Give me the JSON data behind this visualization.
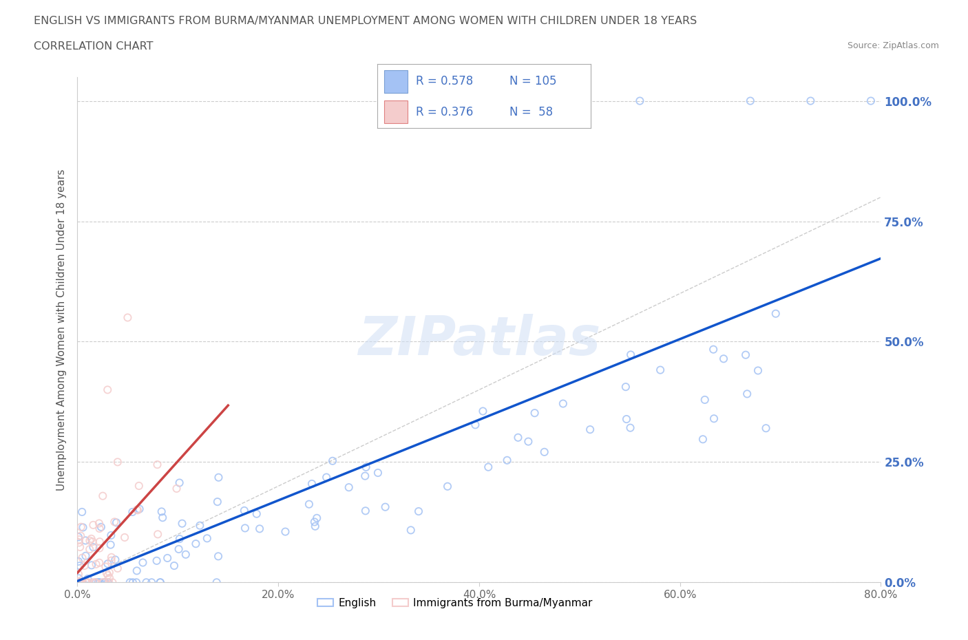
{
  "title_line1": "ENGLISH VS IMMIGRANTS FROM BURMA/MYANMAR UNEMPLOYMENT AMONG WOMEN WITH CHILDREN UNDER 18 YEARS",
  "title_line2": "CORRELATION CHART",
  "source": "Source: ZipAtlas.com",
  "ylabel": "Unemployment Among Women with Children Under 18 years",
  "xlim": [
    0.0,
    0.8
  ],
  "ylim": [
    0.0,
    1.05
  ],
  "yticks": [
    0.0,
    0.25,
    0.5,
    0.75,
    1.0
  ],
  "ytick_labels_right": [
    "0.0%",
    "25.0%",
    "50.0%",
    "75.0%",
    "100.0%"
  ],
  "xticks": [
    0.0,
    0.2,
    0.4,
    0.6,
    0.8
  ],
  "xtick_labels": [
    "0.0%",
    "20.0%",
    "40.0%",
    "60.0%",
    "80.0%"
  ],
  "english_R": 0.578,
  "english_N": 105,
  "burma_R": 0.376,
  "burma_N": 58,
  "blue_scatter_color": "#a4c2f4",
  "blue_line_color": "#1155cc",
  "pink_scatter_color": "#f4cccc",
  "pink_line_color": "#cc4444",
  "diag_color": "#cccccc",
  "watermark": "ZIPatlas",
  "legend_label_english": "English",
  "legend_label_burma": "Immigrants from Burma/Myanmar",
  "background_color": "#ffffff",
  "grid_color": "#cccccc",
  "title_color": "#555555",
  "axis_label_color": "#555555",
  "tick_color_right": "#4472c4",
  "tick_color_bottom": "#666666",
  "legend_R_color": "#4472c4",
  "legend_N_color": "#4472c4",
  "legend_box_color": "#4472c4"
}
